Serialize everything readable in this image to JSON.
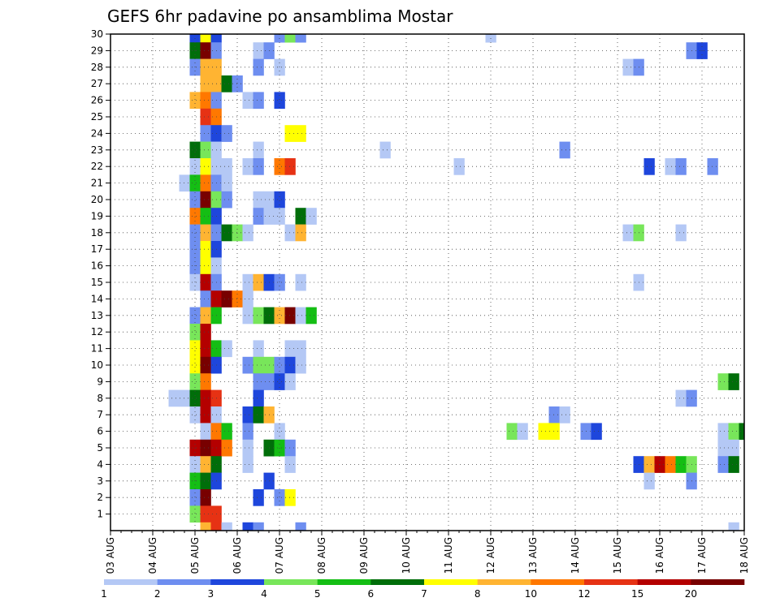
{
  "chart_data": {
    "type": "heatmap",
    "title": "GEFS 6hr padavine po ansamblima Mostar",
    "xlabel": "",
    "ylabel": "",
    "x_unit": "6-hour steps from 03 AUG 00Z",
    "xlim": [
      0,
      60
    ],
    "ylim": [
      0,
      30
    ],
    "x_tick_labels": [
      "03 AUG",
      "04 AUG",
      "05 AUG",
      "06 AUG",
      "07 AUG",
      "08 AUG",
      "09 AUG",
      "10 AUG",
      "11 AUG",
      "12 AUG",
      "13 AUG",
      "14 AUG",
      "15 AUG",
      "16 AUG",
      "17 AUG",
      "18 AUG"
    ],
    "y_tick_labels": [
      "1",
      "2",
      "3",
      "4",
      "5",
      "6",
      "7",
      "8",
      "9",
      "10",
      "11",
      "12",
      "13",
      "14",
      "15",
      "16",
      "17",
      "18",
      "19",
      "20",
      "21",
      "22",
      "23",
      "24",
      "25",
      "26",
      "27",
      "28",
      "29",
      "30"
    ],
    "grid": true,
    "colorbar": {
      "colors": [
        "#b4c8f5",
        "#6e8ef0",
        "#1e46dc",
        "#78e65a",
        "#14be14",
        "#006e0a",
        "#ffff00",
        "#ffb432",
        "#ff7800",
        "#e63214",
        "#b40000",
        "#780000"
      ],
      "labels": [
        "1",
        "2",
        "3",
        "4",
        "5",
        "6",
        "7",
        "8",
        "10",
        "12",
        "15",
        "20"
      ]
    },
    "cells": [
      [
        8,
        30,
        3
      ],
      [
        9,
        30,
        7
      ],
      [
        10,
        30,
        3
      ],
      [
        16,
        30,
        2
      ],
      [
        17,
        30,
        4
      ],
      [
        18,
        30,
        2
      ],
      [
        36,
        30,
        1
      ],
      [
        8,
        29,
        6
      ],
      [
        9,
        29,
        12
      ],
      [
        10,
        29,
        2
      ],
      [
        14,
        29,
        1
      ],
      [
        15,
        29,
        2
      ],
      [
        55,
        29,
        2
      ],
      [
        56,
        29,
        3
      ],
      [
        8,
        28,
        2
      ],
      [
        9,
        28,
        8
      ],
      [
        10,
        28,
        8
      ],
      [
        14,
        28,
        2
      ],
      [
        16,
        28,
        1
      ],
      [
        49,
        28,
        1
      ],
      [
        50,
        28,
        2
      ],
      [
        9,
        27,
        8
      ],
      [
        10,
        27,
        8
      ],
      [
        11,
        27,
        6
      ],
      [
        12,
        27,
        2
      ],
      [
        8,
        26,
        8
      ],
      [
        9,
        26,
        9
      ],
      [
        10,
        26,
        2
      ],
      [
        13,
        26,
        1
      ],
      [
        14,
        26,
        2
      ],
      [
        16,
        26,
        3
      ],
      [
        9,
        25,
        10
      ],
      [
        10,
        25,
        9
      ],
      [
        9,
        24,
        2
      ],
      [
        10,
        24,
        3
      ],
      [
        11,
        24,
        2
      ],
      [
        17,
        24,
        7
      ],
      [
        18,
        24,
        7
      ],
      [
        8,
        23,
        6
      ],
      [
        9,
        23,
        4
      ],
      [
        10,
        23,
        1
      ],
      [
        14,
        23,
        1
      ],
      [
        26,
        23,
        1
      ],
      [
        43,
        23,
        2
      ],
      [
        8,
        22,
        1
      ],
      [
        9,
        22,
        7
      ],
      [
        10,
        22,
        1
      ],
      [
        11,
        22,
        1
      ],
      [
        13,
        22,
        1
      ],
      [
        14,
        22,
        2
      ],
      [
        16,
        22,
        9
      ],
      [
        17,
        22,
        10
      ],
      [
        33,
        22,
        1
      ],
      [
        51,
        22,
        3
      ],
      [
        53,
        22,
        1
      ],
      [
        54,
        22,
        2
      ],
      [
        57,
        22,
        2
      ],
      [
        7,
        21,
        1
      ],
      [
        8,
        21,
        5
      ],
      [
        9,
        21,
        9
      ],
      [
        10,
        21,
        2
      ],
      [
        11,
        21,
        1
      ],
      [
        8,
        20,
        2
      ],
      [
        9,
        20,
        12
      ],
      [
        10,
        20,
        4
      ],
      [
        11,
        20,
        2
      ],
      [
        14,
        20,
        1
      ],
      [
        15,
        20,
        1
      ],
      [
        16,
        20,
        3
      ],
      [
        8,
        19,
        9
      ],
      [
        9,
        19,
        5
      ],
      [
        10,
        19,
        3
      ],
      [
        14,
        19,
        2
      ],
      [
        15,
        19,
        1
      ],
      [
        16,
        19,
        1
      ],
      [
        18,
        19,
        6
      ],
      [
        19,
        19,
        1
      ],
      [
        8,
        18,
        2
      ],
      [
        9,
        18,
        8
      ],
      [
        10,
        18,
        2
      ],
      [
        11,
        18,
        6
      ],
      [
        12,
        18,
        4
      ],
      [
        13,
        18,
        1
      ],
      [
        17,
        18,
        1
      ],
      [
        18,
        18,
        8
      ],
      [
        49,
        18,
        1
      ],
      [
        50,
        18,
        4
      ],
      [
        54,
        18,
        1
      ],
      [
        8,
        17,
        2
      ],
      [
        9,
        17,
        7
      ],
      [
        10,
        17,
        3
      ],
      [
        8,
        16,
        2
      ],
      [
        9,
        16,
        7
      ],
      [
        10,
        16,
        1
      ],
      [
        8,
        15,
        1
      ],
      [
        9,
        15,
        11
      ],
      [
        10,
        15,
        2
      ],
      [
        13,
        15,
        1
      ],
      [
        14,
        15,
        8
      ],
      [
        15,
        15,
        3
      ],
      [
        16,
        15,
        2
      ],
      [
        18,
        15,
        1
      ],
      [
        50,
        15,
        1
      ],
      [
        9,
        14,
        2
      ],
      [
        10,
        14,
        11
      ],
      [
        11,
        14,
        12
      ],
      [
        12,
        14,
        9
      ],
      [
        13,
        14,
        1
      ],
      [
        8,
        13,
        2
      ],
      [
        9,
        13,
        8
      ],
      [
        10,
        13,
        5
      ],
      [
        13,
        13,
        1
      ],
      [
        14,
        13,
        4
      ],
      [
        15,
        13,
        6
      ],
      [
        16,
        13,
        8
      ],
      [
        17,
        13,
        12
      ],
      [
        18,
        13,
        1
      ],
      [
        19,
        13,
        5
      ],
      [
        8,
        12,
        4
      ],
      [
        9,
        12,
        11
      ],
      [
        8,
        11,
        7
      ],
      [
        9,
        11,
        11
      ],
      [
        10,
        11,
        5
      ],
      [
        11,
        11,
        1
      ],
      [
        14,
        11,
        1
      ],
      [
        17,
        11,
        1
      ],
      [
        18,
        11,
        1
      ],
      [
        8,
        10,
        7
      ],
      [
        9,
        10,
        12
      ],
      [
        10,
        10,
        3
      ],
      [
        13,
        10,
        2
      ],
      [
        14,
        10,
        4
      ],
      [
        15,
        10,
        4
      ],
      [
        16,
        10,
        2
      ],
      [
        17,
        10,
        3
      ],
      [
        18,
        10,
        1
      ],
      [
        8,
        9,
        4
      ],
      [
        9,
        9,
        9
      ],
      [
        14,
        9,
        2
      ],
      [
        15,
        9,
        2
      ],
      [
        16,
        9,
        3
      ],
      [
        17,
        9,
        1
      ],
      [
        58,
        9,
        4
      ],
      [
        59,
        9,
        6
      ],
      [
        6,
        8,
        1
      ],
      [
        7,
        8,
        1
      ],
      [
        8,
        8,
        6
      ],
      [
        9,
        8,
        11
      ],
      [
        10,
        8,
        10
      ],
      [
        14,
        8,
        3
      ],
      [
        54,
        8,
        1
      ],
      [
        55,
        8,
        2
      ],
      [
        8,
        7,
        1
      ],
      [
        9,
        7,
        11
      ],
      [
        10,
        7,
        1
      ],
      [
        13,
        7,
        3
      ],
      [
        14,
        7,
        6
      ],
      [
        15,
        7,
        8
      ],
      [
        42,
        7,
        2
      ],
      [
        43,
        7,
        1
      ],
      [
        9,
        6,
        1
      ],
      [
        10,
        6,
        9
      ],
      [
        11,
        6,
        5
      ],
      [
        13,
        6,
        2
      ],
      [
        16,
        6,
        1
      ],
      [
        38,
        6,
        4
      ],
      [
        39,
        6,
        1
      ],
      [
        41,
        6,
        7
      ],
      [
        42,
        6,
        7
      ],
      [
        45,
        6,
        2
      ],
      [
        46,
        6,
        3
      ],
      [
        58,
        6,
        1
      ],
      [
        59,
        6,
        4
      ],
      [
        60,
        6,
        6
      ],
      [
        8,
        5,
        11
      ],
      [
        9,
        5,
        12
      ],
      [
        10,
        5,
        11
      ],
      [
        11,
        5,
        9
      ],
      [
        13,
        5,
        1
      ],
      [
        15,
        5,
        6
      ],
      [
        16,
        5,
        5
      ],
      [
        17,
        5,
        2
      ],
      [
        58,
        5,
        1
      ],
      [
        59,
        5,
        1
      ],
      [
        8,
        4,
        1
      ],
      [
        9,
        4,
        8
      ],
      [
        10,
        4,
        6
      ],
      [
        13,
        4,
        1
      ],
      [
        17,
        4,
        1
      ],
      [
        50,
        4,
        3
      ],
      [
        51,
        4,
        8
      ],
      [
        52,
        4,
        11
      ],
      [
        53,
        4,
        9
      ],
      [
        54,
        4,
        5
      ],
      [
        55,
        4,
        4
      ],
      [
        58,
        4,
        2
      ],
      [
        59,
        4,
        6
      ],
      [
        8,
        3,
        5
      ],
      [
        9,
        3,
        6
      ],
      [
        10,
        3,
        3
      ],
      [
        15,
        3,
        3
      ],
      [
        51,
        3,
        1
      ],
      [
        55,
        3,
        2
      ],
      [
        8,
        2,
        2
      ],
      [
        9,
        2,
        12
      ],
      [
        14,
        2,
        3
      ],
      [
        16,
        2,
        2
      ],
      [
        17,
        2,
        7
      ],
      [
        8,
        1,
        4
      ],
      [
        9,
        1,
        10
      ],
      [
        10,
        1,
        10
      ],
      [
        9,
        0,
        8
      ],
      [
        10,
        0,
        10
      ],
      [
        11,
        0,
        1
      ],
      [
        13,
        0,
        3
      ],
      [
        14,
        0,
        2
      ],
      [
        18,
        0,
        2
      ],
      [
        59,
        0,
        1
      ]
    ]
  }
}
